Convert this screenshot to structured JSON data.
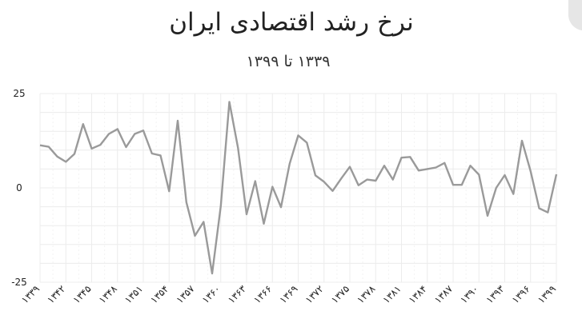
{
  "chart_data": {
    "type": "line",
    "title": "نرخ رشد اقتصادی ایران",
    "subtitle": "۱۳۳۹ تا ۱۳۹۹",
    "xlabel": "",
    "ylabel": "",
    "ylim": [
      -25,
      25
    ],
    "y_ticks": [
      {
        "value": 25,
        "label": "25"
      },
      {
        "value": 0,
        "label": "0"
      },
      {
        "value": -25,
        "label": "-25"
      }
    ],
    "x_tick_labels": [
      "۱۳۳۹",
      "۱۳۴۲",
      "۱۳۴۵",
      "۱۳۴۸",
      "۱۳۵۱",
      "۱۳۵۴",
      "۱۳۵۷",
      "۱۳۶۰",
      "۱۳۶۳",
      "۱۳۶۶",
      "۱۳۶۹",
      "۱۳۷۲",
      "۱۳۷۵",
      "۱۳۷۸",
      "۱۳۸۱",
      "۱۳۸۴",
      "۱۳۸۷",
      "۱۳۹۰",
      "۱۳۹۳",
      "۱۳۹۶",
      "۱۳۹۹"
    ],
    "x_tick_values": [
      1339,
      1342,
      1345,
      1348,
      1351,
      1354,
      1357,
      1360,
      1363,
      1366,
      1369,
      1372,
      1375,
      1378,
      1381,
      1384,
      1387,
      1390,
      1393,
      1396,
      1399
    ],
    "grid": true,
    "series": [
      {
        "name": "",
        "color": "#9a9a9a",
        "x": [
          1339,
          1340,
          1341,
          1342,
          1343,
          1344,
          1345,
          1346,
          1347,
          1348,
          1349,
          1350,
          1351,
          1352,
          1353,
          1354,
          1355,
          1356,
          1357,
          1358,
          1359,
          1360,
          1361,
          1362,
          1363,
          1364,
          1365,
          1366,
          1367,
          1368,
          1369,
          1370,
          1371,
          1372,
          1373,
          1374,
          1375,
          1376,
          1377,
          1378,
          1379,
          1380,
          1381,
          1382,
          1383,
          1384,
          1385,
          1386,
          1387,
          1388,
          1389,
          1390,
          1391,
          1392,
          1393,
          1394,
          1395,
          1396,
          1397,
          1398,
          1399
        ],
        "values": [
          11.3,
          10.9,
          8.3,
          6.9,
          9.0,
          16.9,
          10.4,
          11.4,
          14.3,
          15.6,
          10.8,
          14.3,
          15.2,
          9.1,
          8.6,
          -0.9,
          17.8,
          -3.8,
          -12.7,
          -9.0,
          -22.7,
          -4.8,
          22.8,
          10.6,
          -7.0,
          1.8,
          -9.5,
          0.3,
          -5.1,
          6.4,
          13.9,
          12.0,
          3.3,
          1.6,
          -0.8,
          2.5,
          5.6,
          0.7,
          2.2,
          1.9,
          5.9,
          2.2,
          8.0,
          8.2,
          4.6,
          5.0,
          5.4,
          6.6,
          0.8,
          0.8,
          5.9,
          3.5,
          -7.4,
          0.0,
          3.4,
          -1.6,
          12.5,
          4.4,
          -5.4,
          -6.5,
          3.6
        ]
      }
    ]
  }
}
